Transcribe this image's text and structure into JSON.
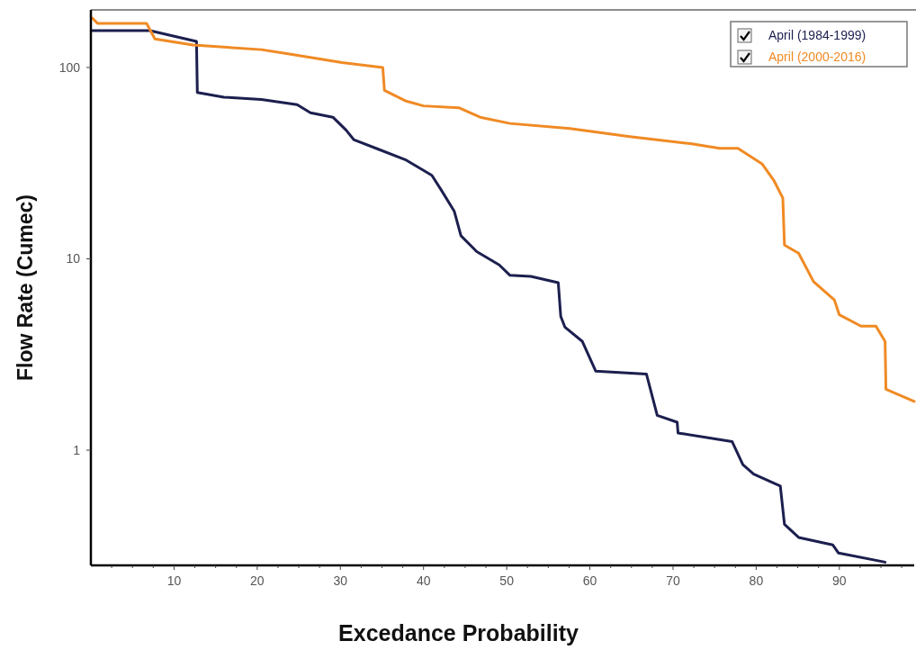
{
  "chart_data": {
    "type": "line",
    "xlabel": "Excedance Probability",
    "ylabel": "Flow Rate (Cumec)",
    "log": "y",
    "grid": false,
    "legend": "top right",
    "xlim": [
      0,
      99
    ],
    "ylim": [
      0.25,
      200
    ],
    "xticks": [
      {
        "value": 2.5,
        "label": null
      },
      {
        "value": 5,
        "label": null
      },
      {
        "value": 7.5,
        "label": null
      },
      10,
      {
        "value": 12.5,
        "label": null
      },
      {
        "value": 15,
        "label": null
      },
      {
        "value": 17.5,
        "label": null
      },
      20,
      {
        "value": 22.5,
        "label": null
      },
      {
        "value": 25,
        "label": null
      },
      {
        "value": 27.5,
        "label": null
      },
      30,
      {
        "value": 32.5,
        "label": null
      },
      {
        "value": 35,
        "label": null
      },
      {
        "value": 37.5,
        "label": null
      },
      40,
      {
        "value": 42.5,
        "label": null
      },
      {
        "value": 45,
        "label": null
      },
      {
        "value": 47.5,
        "label": null
      },
      50,
      {
        "value": 52.5,
        "label": null
      },
      {
        "value": 55,
        "label": null
      },
      {
        "value": 57.5,
        "label": null
      },
      60,
      {
        "value": 62.5,
        "label": null
      },
      {
        "value": 65,
        "label": null
      },
      {
        "value": 67.5,
        "label": null
      },
      70,
      {
        "value": 72.5,
        "label": null
      },
      {
        "value": 75,
        "label": null
      },
      {
        "value": 77.5,
        "label": null
      },
      80,
      {
        "value": 82.5,
        "label": null
      },
      {
        "value": 85,
        "label": null
      },
      {
        "value": 87.5,
        "label": null
      },
      90,
      {
        "value": 92.5,
        "label": null
      },
      {
        "value": 95,
        "label": null
      },
      {
        "value": 97.5,
        "label": null
      }
    ],
    "yticks": [
      1,
      10,
      100
    ],
    "series": [
      {
        "name": "April (1984-1999)",
        "color": "#1c1f4e",
        "x": [
          0.2,
          7.1,
          12.7,
          12.8,
          16,
          20.5,
          24.8,
          26.4,
          29.1,
          30.7,
          31.6,
          34.5,
          37.8,
          41,
          42.1,
          43.7,
          44.5,
          46.4,
          49.1,
          50.4,
          52.9,
          56.2,
          56.5,
          57,
          59.1,
          60.7,
          66.8,
          68.1,
          70.5,
          70.6,
          77.1,
          78.4,
          79.7,
          82.9,
          83.4,
          85.1,
          89.2,
          89.9,
          95.5
        ],
        "values": [
          156,
          156,
          137,
          74,
          70,
          68,
          64,
          58,
          55,
          47,
          42,
          37.5,
          33,
          27.3,
          23,
          17.7,
          13.2,
          10.9,
          9.3,
          8.2,
          8.1,
          7.5,
          5.0,
          4.4,
          3.7,
          2.59,
          2.5,
          1.52,
          1.4,
          1.23,
          1.11,
          0.84,
          0.75,
          0.65,
          0.41,
          0.35,
          0.32,
          0.29,
          0.26
        ]
      },
      {
        "name": "April (2000-2016)",
        "color": "#f08a24",
        "x": [
          0.2,
          0.8,
          6.7,
          7.7,
          12.3,
          20.5,
          23.7,
          30.2,
          35.1,
          35.3,
          37.8,
          40,
          44.3,
          46.8,
          50.4,
          57.6,
          64.8,
          72.1,
          75.6,
          77.8,
          80.7,
          82.1,
          83.2,
          83.4,
          85.1,
          86.9,
          89.4,
          90,
          92.6,
          94.4,
          95.5,
          95.6,
          99
        ],
        "values": [
          181,
          170,
          170,
          141,
          131,
          124,
          118,
          106,
          100,
          76,
          67,
          63,
          61.5,
          55,
          51,
          48,
          43.5,
          40,
          37.8,
          37.8,
          31.4,
          25.8,
          20.8,
          11.8,
          10.7,
          7.6,
          6.1,
          5.1,
          4.45,
          4.45,
          3.7,
          2.08,
          1.8
        ]
      }
    ]
  }
}
